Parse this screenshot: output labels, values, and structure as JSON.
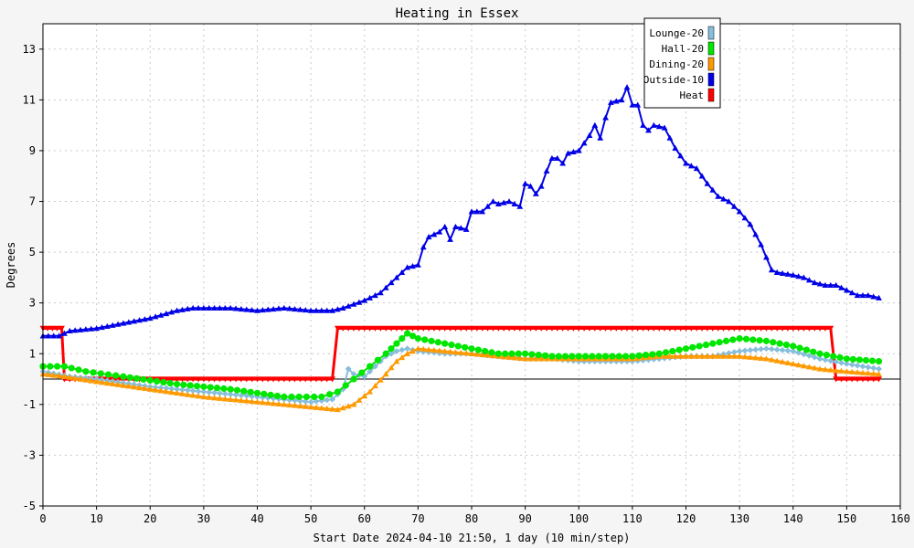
{
  "chart_data": {
    "type": "line",
    "title": "Heating in Essex",
    "xlabel": "Start Date 2024-04-10 21:50, 1 day (10 min/step)",
    "ylabel": "Degrees",
    "xlim": [
      0,
      160
    ],
    "ylim": [
      -5,
      14
    ],
    "x_ticks": [
      "0",
      "10",
      "20",
      "30",
      "40",
      "50",
      "60",
      "70",
      "80",
      "90",
      "100",
      "110",
      "120",
      "130",
      "140",
      "150",
      "160"
    ],
    "y_ticks": [
      "-5",
      "-3",
      "-1",
      "1",
      "3",
      "5",
      "7",
      "9",
      "11",
      "13"
    ],
    "grid": true,
    "legend_position": "top-right",
    "series": [
      {
        "name": "Lounge-20",
        "color": "#87bedc",
        "marker": "diamond",
        "points": [
          [
            0,
            0.3
          ],
          [
            5,
            0.1
          ],
          [
            10,
            0.0
          ],
          [
            20,
            -0.3
          ],
          [
            30,
            -0.5
          ],
          [
            40,
            -0.7
          ],
          [
            50,
            -0.9
          ],
          [
            54,
            -0.8
          ],
          [
            56,
            -0.4
          ],
          [
            57,
            0.4
          ],
          [
            58,
            0.2
          ],
          [
            60,
            0.1
          ],
          [
            62,
            0.5
          ],
          [
            64,
            0.9
          ],
          [
            66,
            1.1
          ],
          [
            68,
            1.2
          ],
          [
            70,
            1.1
          ],
          [
            75,
            1.0
          ],
          [
            80,
            1.0
          ],
          [
            85,
            0.9
          ],
          [
            90,
            0.8
          ],
          [
            95,
            0.8
          ],
          [
            100,
            0.7
          ],
          [
            105,
            0.7
          ],
          [
            110,
            0.7
          ],
          [
            115,
            0.8
          ],
          [
            120,
            0.9
          ],
          [
            125,
            0.9
          ],
          [
            130,
            1.1
          ],
          [
            135,
            1.2
          ],
          [
            140,
            1.1
          ],
          [
            145,
            0.8
          ],
          [
            150,
            0.6
          ],
          [
            156,
            0.4
          ]
        ]
      },
      {
        "name": "Hall-20",
        "color": "#00e600",
        "marker": "circle",
        "points": [
          [
            0,
            0.5
          ],
          [
            4,
            0.5
          ],
          [
            8,
            0.3
          ],
          [
            15,
            0.1
          ],
          [
            25,
            -0.2
          ],
          [
            35,
            -0.4
          ],
          [
            45,
            -0.7
          ],
          [
            52,
            -0.7
          ],
          [
            55,
            -0.5
          ],
          [
            58,
            0.0
          ],
          [
            61,
            0.5
          ],
          [
            64,
            1.0
          ],
          [
            66,
            1.4
          ],
          [
            68,
            1.8
          ],
          [
            70,
            1.6
          ],
          [
            75,
            1.4
          ],
          [
            80,
            1.2
          ],
          [
            85,
            1.0
          ],
          [
            90,
            1.0
          ],
          [
            95,
            0.9
          ],
          [
            100,
            0.9
          ],
          [
            105,
            0.9
          ],
          [
            110,
            0.9
          ],
          [
            115,
            1.0
          ],
          [
            120,
            1.2
          ],
          [
            125,
            1.4
          ],
          [
            130,
            1.6
          ],
          [
            135,
            1.5
          ],
          [
            140,
            1.3
          ],
          [
            145,
            1.0
          ],
          [
            150,
            0.8
          ],
          [
            156,
            0.7
          ]
        ]
      },
      {
        "name": "Dining-20",
        "color": "#ff9900",
        "marker": "triangle",
        "points": [
          [
            0,
            0.2
          ],
          [
            4,
            0.1
          ],
          [
            10,
            -0.1
          ],
          [
            20,
            -0.4
          ],
          [
            30,
            -0.7
          ],
          [
            40,
            -0.9
          ],
          [
            50,
            -1.1
          ],
          [
            55,
            -1.2
          ],
          [
            58,
            -1.0
          ],
          [
            61,
            -0.5
          ],
          [
            64,
            0.2
          ],
          [
            66,
            0.7
          ],
          [
            68,
            1.0
          ],
          [
            70,
            1.2
          ],
          [
            75,
            1.1
          ],
          [
            80,
            1.0
          ],
          [
            85,
            0.9
          ],
          [
            90,
            0.8
          ],
          [
            95,
            0.8
          ],
          [
            100,
            0.8
          ],
          [
            105,
            0.8
          ],
          [
            110,
            0.8
          ],
          [
            115,
            0.9
          ],
          [
            120,
            0.9
          ],
          [
            125,
            0.9
          ],
          [
            130,
            0.9
          ],
          [
            135,
            0.8
          ],
          [
            140,
            0.6
          ],
          [
            145,
            0.4
          ],
          [
            150,
            0.3
          ],
          [
            156,
            0.2
          ]
        ]
      },
      {
        "name": "Outside-10",
        "color": "#0000e6",
        "marker": "triangle",
        "points": [
          [
            0,
            1.7
          ],
          [
            3,
            1.7
          ],
          [
            5,
            1.9
          ],
          [
            10,
            2.0
          ],
          [
            15,
            2.2
          ],
          [
            20,
            2.4
          ],
          [
            25,
            2.7
          ],
          [
            28,
            2.8
          ],
          [
            35,
            2.8
          ],
          [
            40,
            2.7
          ],
          [
            45,
            2.8
          ],
          [
            50,
            2.7
          ],
          [
            54,
            2.7
          ],
          [
            56,
            2.8
          ],
          [
            60,
            3.1
          ],
          [
            63,
            3.4
          ],
          [
            66,
            4.0
          ],
          [
            68,
            4.4
          ],
          [
            70,
            4.5
          ],
          [
            71,
            5.2
          ],
          [
            72,
            5.6
          ],
          [
            74,
            5.8
          ],
          [
            75,
            6.0
          ],
          [
            76,
            5.5
          ],
          [
            77,
            6.0
          ],
          [
            79,
            5.9
          ],
          [
            80,
            6.6
          ],
          [
            82,
            6.6
          ],
          [
            84,
            7.0
          ],
          [
            85,
            6.9
          ],
          [
            87,
            7.0
          ],
          [
            89,
            6.8
          ],
          [
            90,
            7.7
          ],
          [
            91,
            7.6
          ],
          [
            92,
            7.3
          ],
          [
            93,
            7.6
          ],
          [
            94,
            8.2
          ],
          [
            95,
            8.7
          ],
          [
            96,
            8.7
          ],
          [
            97,
            8.5
          ],
          [
            98,
            8.9
          ],
          [
            100,
            9.0
          ],
          [
            102,
            9.6
          ],
          [
            103,
            10.0
          ],
          [
            104,
            9.5
          ],
          [
            105,
            10.3
          ],
          [
            106,
            10.9
          ],
          [
            108,
            11.0
          ],
          [
            109,
            11.5
          ],
          [
            110,
            10.8
          ],
          [
            111,
            10.8
          ],
          [
            112,
            10.0
          ],
          [
            113,
            9.8
          ],
          [
            114,
            10.0
          ],
          [
            116,
            9.9
          ],
          [
            118,
            9.1
          ],
          [
            120,
            8.5
          ],
          [
            122,
            8.3
          ],
          [
            124,
            7.7
          ],
          [
            126,
            7.2
          ],
          [
            128,
            7.0
          ],
          [
            130,
            6.6
          ],
          [
            132,
            6.1
          ],
          [
            134,
            5.3
          ],
          [
            135,
            4.8
          ],
          [
            136,
            4.3
          ],
          [
            137,
            4.2
          ],
          [
            140,
            4.1
          ],
          [
            142,
            4.0
          ],
          [
            144,
            3.8
          ],
          [
            146,
            3.7
          ],
          [
            148,
            3.7
          ],
          [
            150,
            3.5
          ],
          [
            152,
            3.3
          ],
          [
            154,
            3.3
          ],
          [
            156,
            3.2
          ]
        ]
      },
      {
        "name": "Heat",
        "color": "#ff0000",
        "marker": "triangle-down",
        "points": [
          [
            0,
            2.0
          ],
          [
            3.5,
            2.0
          ],
          [
            4,
            0.0
          ],
          [
            54,
            0.0
          ],
          [
            55,
            2.0
          ],
          [
            147,
            2.0
          ],
          [
            148,
            0.0
          ],
          [
            156,
            0.0
          ]
        ]
      }
    ]
  }
}
